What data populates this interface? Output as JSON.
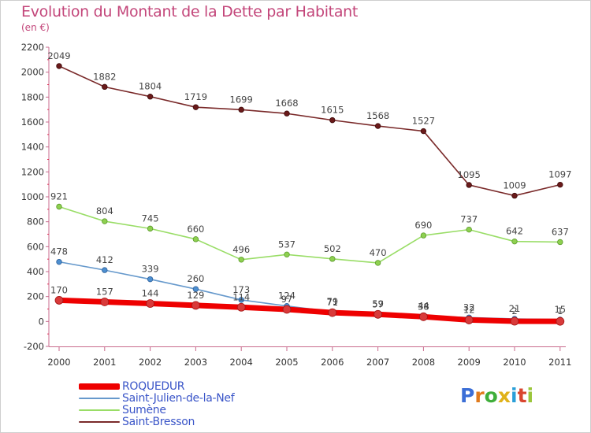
{
  "header": {
    "title": "Evolution du Montant de la Dette par Habitant",
    "subtitle": "(en €)"
  },
  "logo": {
    "letters": [
      "P",
      "r",
      "o",
      "x",
      "i",
      "t",
      "i"
    ],
    "colors": [
      "#3b6ed6",
      "#e07a1c",
      "#3fae3a",
      "#e0b21a",
      "#2a9fd8",
      "#d9452f",
      "#9bc63b"
    ]
  },
  "chart_data": {
    "type": "line",
    "title": "Evolution du Montant de la Dette par Habitant",
    "ylabel": "(en €)",
    "xlabel": "",
    "categories": [
      "2000",
      "2001",
      "2002",
      "2003",
      "2004",
      "2005",
      "2006",
      "2007",
      "2008",
      "2009",
      "2010",
      "2011"
    ],
    "ylim": [
      -200,
      2200
    ],
    "yticks": [
      "-200",
      "0",
      "200",
      "400",
      "600",
      "800",
      "1000",
      "1200",
      "1400",
      "1600",
      "1800",
      "2000",
      "2200"
    ],
    "grid": false,
    "legend_position": "bottom-left",
    "series": [
      {
        "name": "ROQUEDUR",
        "color": "#ee0000",
        "values": [
          170,
          157,
          144,
          129,
          114,
          97,
          71,
          57,
          38,
          12,
          2,
          1
        ],
        "labels": [
          "170",
          "157",
          "144",
          "129",
          "114",
          "97",
          "71",
          "57",
          "38",
          "12",
          "2",
          "1"
        ]
      },
      {
        "name": "Saint-Julien-de-la-Nef",
        "color": "#6699cc",
        "values": [
          478,
          412,
          339,
          260,
          173,
          124,
          79,
          59,
          44,
          32,
          21,
          15
        ],
        "labels": [
          "478",
          "412",
          "339",
          "260",
          "173",
          "124",
          "79",
          "59",
          "44",
          "32",
          "21",
          "15"
        ]
      },
      {
        "name": "Sumène",
        "color": "#99dd66",
        "values": [
          921,
          804,
          745,
          660,
          496,
          537,
          502,
          470,
          690,
          737,
          642,
          637
        ],
        "labels": [
          "921",
          "804",
          "745",
          "660",
          "496",
          "537",
          "502",
          "470",
          "690",
          "737",
          "642",
          "637"
        ]
      },
      {
        "name": "Saint-Bresson",
        "color": "#7a2a2a",
        "values": [
          2049,
          1882,
          1804,
          1719,
          1699,
          1668,
          1615,
          1568,
          1527,
          1095,
          1009,
          1097
        ],
        "labels": [
          "2049",
          "1882",
          "1804",
          "1719",
          "1699",
          "1668",
          "1615",
          "1568",
          "1527",
          "1095",
          "1009",
          "1097"
        ]
      }
    ]
  }
}
